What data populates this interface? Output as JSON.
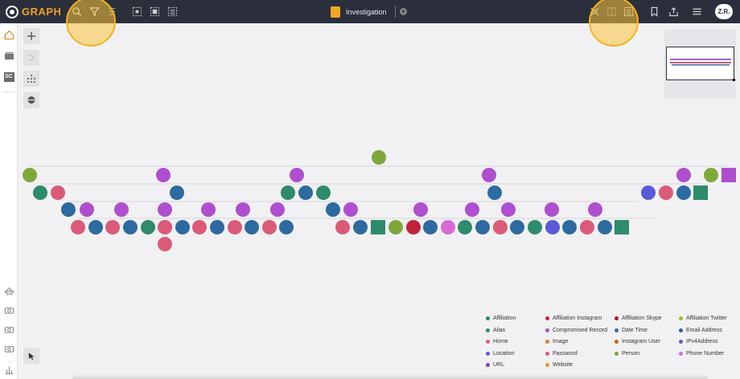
{
  "app": {
    "logo_text": "GRAPH"
  },
  "topbar": {
    "tab_title": "Investigation",
    "user_initials": "Z.R.",
    "tools": [
      "search-icon",
      "filter-icon",
      "list-icon",
      "select-all-icon",
      "select-area-icon",
      "select-list-icon"
    ],
    "right_tools": [
      "layout-icon",
      "grid-view-icon",
      "list-view-icon",
      "bookmark-icon",
      "share-icon",
      "menu-icon"
    ]
  },
  "sidebar": {
    "items": [
      "home-icon",
      "stack-icon",
      "sc-icon",
      "team-icon",
      "camera-icon",
      "camera-icon",
      "camera-icon",
      "chart-icon"
    ],
    "sc_label": "SC"
  },
  "colors": {
    "topbar": "#2b2f3c",
    "accent": "#f0a024",
    "Affiliation": "#1e8a6e",
    "Affiliation Instagram": "#c0243c",
    "Affiliation Skype": "#b8101e",
    "Affiliation Twitter": "#a6b820",
    "Alias": "#2e8b6b",
    "Compromised Record": "#b04ed0",
    "Date Time": "#2d6a9f",
    "Email Address": "#235fa0",
    "Home": "#db5a78",
    "Image": "#e07a2a",
    "Instagram User": "#c06a1a",
    "IPv4Address": "#5a5ad8",
    "Location": "#5a5ad8",
    "Password": "#db5a78",
    "Person": "#7ea83a",
    "Phone Number": "#da6ad8",
    "URL": "#8a3ad8",
    "Website": "#d8a020"
  },
  "legend": [
    {
      "label": "Affiliation",
      "color": "#1e8a6e"
    },
    {
      "label": "Affiliation Instagram",
      "color": "#c0243c"
    },
    {
      "label": "Affiliation Skype",
      "color": "#b8101e"
    },
    {
      "label": "Affiliation Twitter",
      "color": "#a6b820"
    },
    {
      "label": "Alias",
      "color": "#2e8b6b"
    },
    {
      "label": "Compromised Record",
      "color": "#b04ed0"
    },
    {
      "label": "Date Time",
      "color": "#2d6a9f"
    },
    {
      "label": "Email Address",
      "color": "#235fa0"
    },
    {
      "label": "Home",
      "color": "#db5a78"
    },
    {
      "label": "Image",
      "color": "#e07a2a"
    },
    {
      "label": "Instagram User",
      "color": "#c06a1a"
    },
    {
      "label": "IPv4Address",
      "color": "#5a5ad8"
    },
    {
      "label": "Location",
      "color": "#5a5ad8"
    },
    {
      "label": "Password",
      "color": "#db5a78"
    },
    {
      "label": "Person",
      "color": "#7ea83a"
    },
    {
      "label": "Phone Number",
      "color": "#da6ad8"
    },
    {
      "label": "URL",
      "color": "#8a3ad8"
    },
    {
      "label": "Website",
      "color": "#d8a020"
    }
  ],
  "graph": {
    "root": {
      "type": "Person",
      "shape": "circle"
    },
    "rows": [
      [
        [
          "Person",
          "circle"
        ],
        [
          "Compromised Record",
          "circle"
        ],
        [
          "Compromised Record",
          "circle"
        ],
        [
          "Compromised Record",
          "circle"
        ],
        [
          "Compromised Record",
          "circle"
        ],
        [
          "Person",
          "circle"
        ],
        [
          "Compromised Record",
          "square"
        ]
      ],
      [
        [
          "Alias",
          "circle"
        ],
        [
          "Home",
          "circle"
        ],
        [
          "Date Time",
          "circle"
        ],
        [
          "Alias",
          "circle"
        ],
        [
          "Date Time",
          "circle"
        ],
        [
          "Alias",
          "circle"
        ],
        [
          "Date Time",
          "circle"
        ],
        [
          "Location",
          "circle"
        ],
        [
          "Home",
          "circle"
        ],
        [
          "Date Time",
          "circle"
        ],
        [
          "Alias",
          "square"
        ]
      ],
      [
        [
          "Date Time",
          "circle"
        ],
        [
          "Compromised Record",
          "circle"
        ],
        [
          "Compromised Record",
          "circle"
        ],
        [
          "Compromised Record",
          "circle"
        ],
        [
          "Compromised Record",
          "circle"
        ],
        [
          "Compromised Record",
          "circle"
        ],
        [
          "Compromised Record",
          "circle"
        ],
        [
          "Date Time",
          "circle"
        ],
        [
          "Compromised Record",
          "circle"
        ],
        [
          "Compromised Record",
          "circle"
        ],
        [
          "Compromised Record",
          "circle"
        ],
        [
          "Compromised Record",
          "circle"
        ],
        [
          "Compromised Record",
          "circle"
        ],
        [
          "Compromised Record",
          "circle"
        ]
      ],
      [
        [
          "Home",
          "circle"
        ],
        [
          "Date Time",
          "circle"
        ],
        [
          "Home",
          "circle"
        ],
        [
          "Date Time",
          "circle"
        ],
        [
          "Alias",
          "circle"
        ],
        [
          "Home",
          "circle"
        ],
        [
          "Date Time",
          "circle"
        ],
        [
          "Home",
          "circle"
        ],
        [
          "Date Time",
          "circle"
        ],
        [
          "Home",
          "circle"
        ],
        [
          "Date Time",
          "circle"
        ],
        [
          "Home",
          "circle"
        ],
        [
          "Date Time",
          "circle"
        ],
        [
          "Home",
          "circle"
        ],
        [
          "Date Time",
          "circle"
        ],
        [
          "Alias",
          "square"
        ],
        [
          "Person",
          "circle"
        ],
        [
          "Affiliation Instagram",
          "circle"
        ],
        [
          "Date Time",
          "circle"
        ],
        [
          "Phone Number",
          "circle"
        ],
        [
          "Alias",
          "circle"
        ],
        [
          "Date Time",
          "circle"
        ],
        [
          "Home",
          "circle"
        ],
        [
          "Date Time",
          "circle"
        ],
        [
          "Alias",
          "circle"
        ],
        [
          "Location",
          "circle"
        ],
        [
          "Date Time",
          "circle"
        ],
        [
          "Home",
          "circle"
        ],
        [
          "Date Time",
          "circle"
        ],
        [
          "Alias",
          "square"
        ]
      ],
      [
        [
          "Home",
          "circle"
        ]
      ]
    ]
  }
}
